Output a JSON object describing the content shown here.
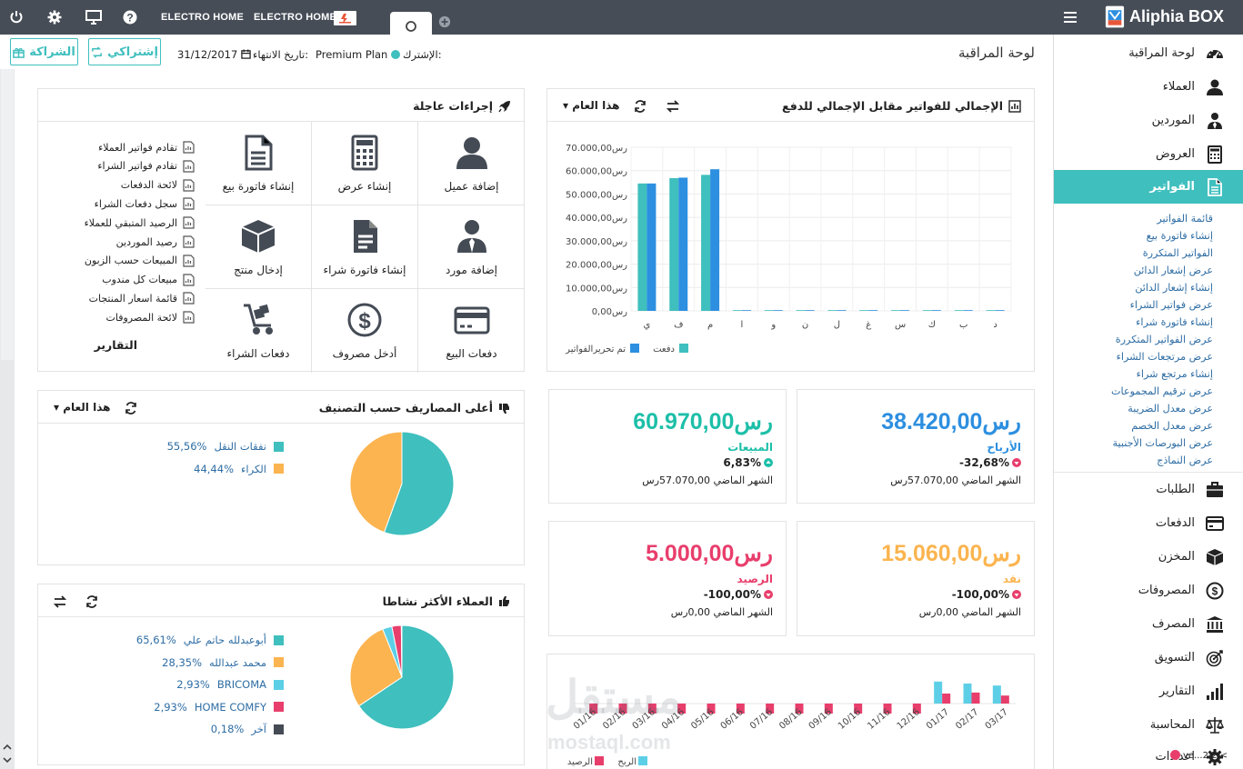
{
  "topbar": {
    "store1": "ELECTRO HOME",
    "store2": "ELECTRO HOME",
    "brand": "Aliphia BOX",
    "icons": [
      "power-icon",
      "gear-icon",
      "monitor-icon",
      "help-icon",
      "plus-icon",
      "menu-icon"
    ]
  },
  "header": {
    "page_title": "لوحة المراقبة",
    "subscription_label": "الإشترك:",
    "plan": "Premium Plan",
    "expiry_label": "تاريخ الانتهاء:",
    "expiry_date": "31/12/2017",
    "subscribe_btn": "إشتراكي",
    "partnership_btn": "الشراكة"
  },
  "sidebar": {
    "items": [
      {
        "label": "لوحة المراقبة",
        "icon": "dashboard-icon"
      },
      {
        "label": "العملاء",
        "icon": "user-icon"
      },
      {
        "label": "الموردين",
        "icon": "supplier-icon"
      },
      {
        "label": "العروض",
        "icon": "calculator-icon"
      },
      {
        "label": "الفواتير",
        "icon": "invoice-icon"
      },
      {
        "label": "الطلبات",
        "icon": "briefcase-icon"
      },
      {
        "label": "الدفعات",
        "icon": "card-icon"
      },
      {
        "label": "المخزن",
        "icon": "box-icon"
      },
      {
        "label": "المصروفات",
        "icon": "dollar-icon"
      },
      {
        "label": "المصرف",
        "icon": "bank-icon"
      },
      {
        "label": "التسويق",
        "icon": "target-icon"
      },
      {
        "label": "التقارير",
        "icon": "signal-icon"
      },
      {
        "label": "المحاسبة",
        "icon": "scale-icon"
      },
      {
        "label": "اعدادات",
        "icon": "gear-icon"
      }
    ],
    "invoice_subitems": [
      "قائمة الفواتير",
      "إنشاء فاتورة بيع",
      "الفواتير المتكررة",
      "عرض إشعار الدائن",
      "إنشاء إشعار الدائن",
      "عرض فواتير الشراء",
      "إنشاء فاتورة شراء",
      "عرض الفواتير المتكررة",
      "عرض مرتجعات الشراء",
      "إنشاء مرتجع شراء",
      "عرض ترقيم المجموعات",
      "عرض معدل الضريبة",
      "عرض معدل الخصم",
      "عرض البورصات الأجنبية",
      "عرض النماذج"
    ],
    "version": "ve...2.2 <"
  },
  "quick_actions": {
    "title": "إجراءات عاجلة",
    "actions": [
      {
        "label": "إضافة عميل",
        "icon": "user-icon"
      },
      {
        "label": "إنشاء عرض",
        "icon": "calculator-icon"
      },
      {
        "label": "إنشاء فاتورة بيع",
        "icon": "invoice-icon"
      },
      {
        "label": "إضافة مورد",
        "icon": "supplier-icon"
      },
      {
        "label": "إنشاء فاتورة شراء",
        "icon": "invoice-filled-icon"
      },
      {
        "label": "إدخال منتج",
        "icon": "box-icon"
      },
      {
        "label": "دفعات البيع",
        "icon": "card-icon"
      },
      {
        "label": "أدخل مصروف",
        "icon": "dollar-icon"
      },
      {
        "label": "دفعات الشراء",
        "icon": "hand-truck-icon"
      }
    ],
    "reports_title": "التقارير",
    "reports": [
      "تقادم فواتير العملاء",
      "تقادم فواتير الشراء",
      "لائحة الدفعات",
      "سجل دفعات الشراء",
      "الرصيد المتبقي للعملاء",
      "رصيد الموردين",
      "المبيعات حسب الزبون",
      "مبيعات كل مندوب",
      "قائمة اسعار المنتجات",
      "لائحة المصروفات"
    ]
  },
  "invoice_chart": {
    "title": "الإجمالي للفواتير مقابل الإجمالي للدفع",
    "period": "هذا العام"
  },
  "chart_data": [
    {
      "type": "bar",
      "title": "الإجمالي للفواتير مقابل الإجمالي للدفع",
      "categories": [
        "ي",
        "ف",
        "م",
        "ا",
        "و",
        "ن",
        "ل",
        "غ",
        "س",
        "ك",
        "ب",
        "د"
      ],
      "series": [
        {
          "name": "دفعت",
          "color": "#3fbfbe",
          "values": [
            54500,
            56800,
            58200,
            0,
            0,
            0,
            0,
            0,
            0,
            0,
            0,
            0
          ]
        },
        {
          "name": "تم تحريرالفواتير",
          "color": "#2d8fe0",
          "values": [
            54500,
            57000,
            60600,
            0,
            0,
            0,
            0,
            0,
            0,
            0,
            0,
            0
          ]
        }
      ],
      "yticks": [
        "70.000,00رس",
        "60.000,00رس",
        "50.000,00رس",
        "40.000,00رس",
        "30.000,00رس",
        "20.000,00رس",
        "10.000,00رس",
        "0,00رس"
      ],
      "ylim": [
        0,
        70000
      ],
      "grid": true,
      "legend": "bottom"
    },
    {
      "type": "pie",
      "title": "أعلى المصاريف حسب التصنيف",
      "slices": [
        {
          "label": "نفقات النقل",
          "pct": "55,56%",
          "value": 55.56,
          "color": "#3fbfbe"
        },
        {
          "label": "الكراء",
          "pct": "44,44%",
          "value": 44.44,
          "color": "#fbb44f"
        }
      ]
    },
    {
      "type": "pie",
      "title": "العملاء الأكثر نشاطا",
      "slices": [
        {
          "label": "أبوعبدلله حاتم علي",
          "pct": "65,61%",
          "value": 65.61,
          "color": "#3fbfbe"
        },
        {
          "label": "محمد عبدالله",
          "pct": "28,35%",
          "value": 28.35,
          "color": "#fbb44f"
        },
        {
          "label": "BRICOMA",
          "pct": "2,93%",
          "value": 2.93,
          "color": "#5ccfe6"
        },
        {
          "label": "HOME COMFY",
          "pct": "2,93%",
          "value": 2.93,
          "color": "#e83e6c"
        },
        {
          "label": "آخر",
          "pct": "0,18%",
          "value": 0.18,
          "color": "#444b55"
        }
      ]
    },
    {
      "type": "bar",
      "categories": [
        "01/16",
        "02/16",
        "03/16",
        "04/16",
        "05/16",
        "06/16",
        "07/16",
        "08/16",
        "09/16",
        "10/16",
        "11/16",
        "12/16",
        "01/17",
        "02/17",
        "03/17"
      ],
      "series": [
        {
          "name": "الربح",
          "color": "#5ccfe6",
          "values": [
            0,
            0,
            0,
            0,
            0,
            0,
            0,
            0,
            0,
            0,
            0,
            0,
            22,
            20,
            18
          ]
        },
        {
          "name": "الرصيد",
          "color": "#e83e6c",
          "values": [
            -10,
            -10,
            -10,
            -10,
            -10,
            -10,
            -10,
            -10,
            -10,
            -10,
            -10,
            -10,
            10,
            11,
            8
          ]
        }
      ],
      "legend": "bottom"
    }
  ],
  "expenses_panel": {
    "title": "أعلى المصاريف حسب التصنيف",
    "period": "هذا العام"
  },
  "clients_panel": {
    "title": "العملاء الأكثر نشاطا"
  },
  "stats": [
    {
      "value": "38.420,00رس",
      "name": "الأرباح",
      "pct": "-32,68%",
      "last": "الشهر الماضي 57.070,00رس",
      "color": "#2d8fe0",
      "dir": "down"
    },
    {
      "value": "60.970,00رس",
      "name": "المبيعات",
      "pct": "6,83%",
      "last": "الشهر الماضي 57.070,00رس",
      "color": "#1dbfa8",
      "dir": "up"
    },
    {
      "value": "15.060,00رس",
      "name": "نقد",
      "pct": "-100,00%",
      "last": "الشهر الماضي 0,00رس",
      "color": "#fbb44f",
      "dir": "down"
    },
    {
      "value": "5.000,00رس",
      "name": "الرصيد",
      "pct": "-100,00%",
      "last": "الشهر الماضي 0,00رس",
      "color": "#e83e6c",
      "dir": "down"
    }
  ],
  "watermark": {
    "text": "mostaql.com"
  }
}
